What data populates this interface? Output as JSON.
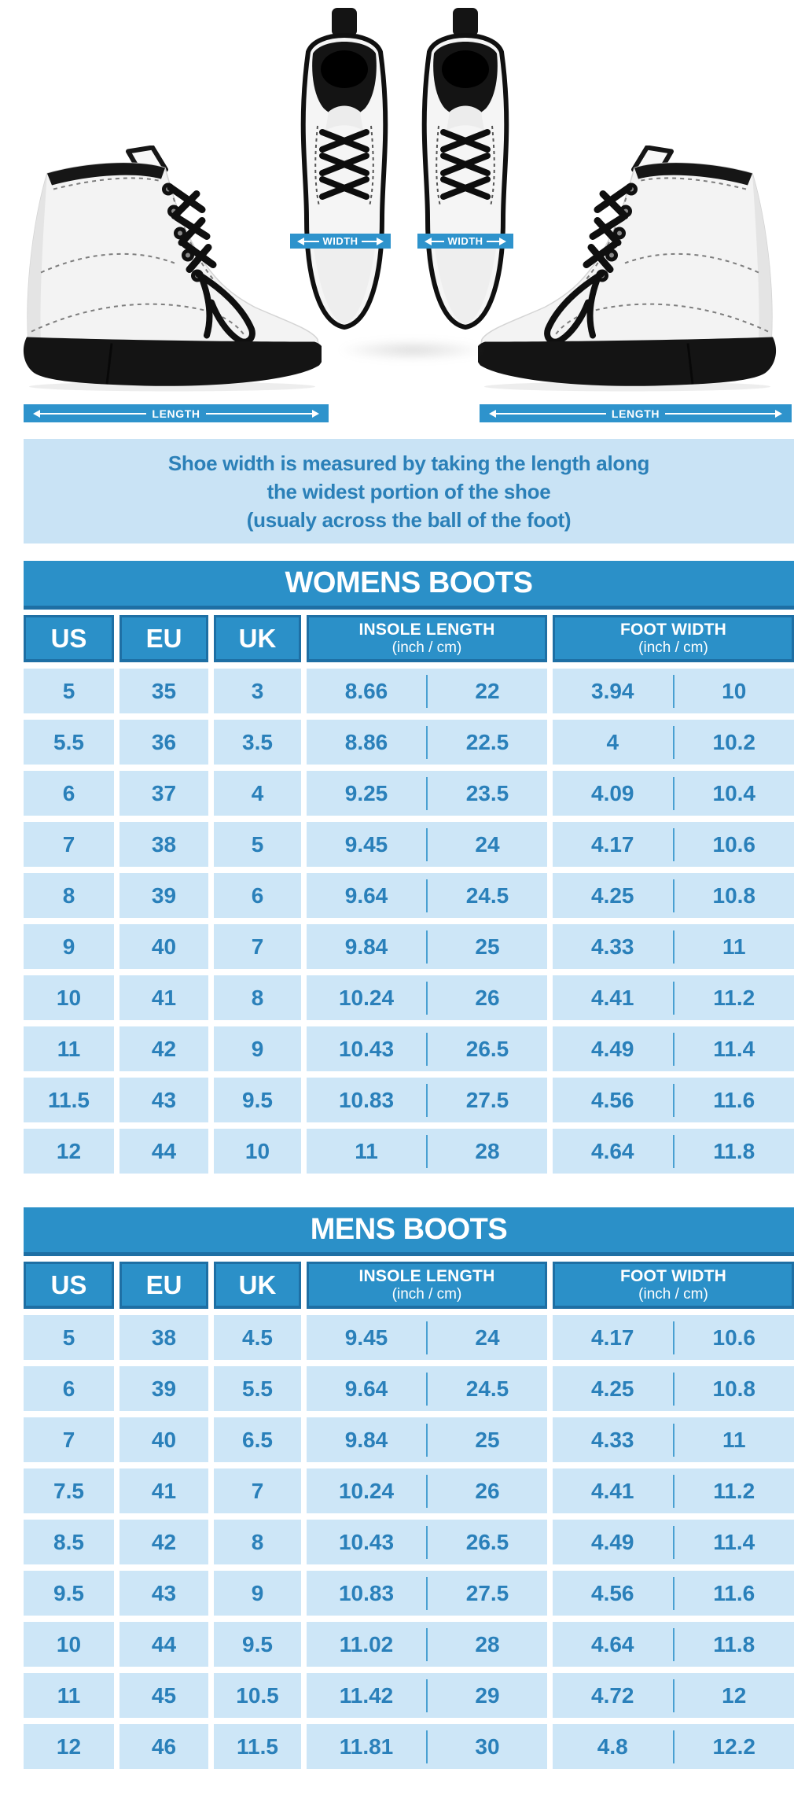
{
  "page": {
    "colors": {
      "accent_blue": "#2b90c8",
      "accent_blue_dark": "#1e6fa4",
      "cell_light_blue": "#cde6f7",
      "note_bg": "#c9e3f5",
      "data_text_blue": "#2a80ba",
      "note_text_blue": "#2b80b8",
      "band_white": "#ffffff"
    }
  },
  "hero": {
    "width_label": "WIDTH",
    "length_label": "LENGTH"
  },
  "note": {
    "line1": "Shoe width is measured by taking the length along",
    "line2": "the widest portion of the shoe",
    "line3": "(usualy across the ball of the foot)"
  },
  "tables": [
    {
      "title": "WOMENS BOOTS",
      "columns": [
        "US",
        "EU",
        "UK",
        "INSOLE LENGTH",
        "FOOT WIDTH"
      ],
      "units_label": "(inch / cm)",
      "rows": [
        {
          "us": "5",
          "eu": "35",
          "uk": "3",
          "in_in": "8.66",
          "in_cm": "22",
          "w_in": "3.94",
          "w_cm": "10"
        },
        {
          "us": "5.5",
          "eu": "36",
          "uk": "3.5",
          "in_in": "8.86",
          "in_cm": "22.5",
          "w_in": "4",
          "w_cm": "10.2"
        },
        {
          "us": "6",
          "eu": "37",
          "uk": "4",
          "in_in": "9.25",
          "in_cm": "23.5",
          "w_in": "4.09",
          "w_cm": "10.4"
        },
        {
          "us": "7",
          "eu": "38",
          "uk": "5",
          "in_in": "9.45",
          "in_cm": "24",
          "w_in": "4.17",
          "w_cm": "10.6"
        },
        {
          "us": "8",
          "eu": "39",
          "uk": "6",
          "in_in": "9.64",
          "in_cm": "24.5",
          "w_in": "4.25",
          "w_cm": "10.8"
        },
        {
          "us": "9",
          "eu": "40",
          "uk": "7",
          "in_in": "9.84",
          "in_cm": "25",
          "w_in": "4.33",
          "w_cm": "11"
        },
        {
          "us": "10",
          "eu": "41",
          "uk": "8",
          "in_in": "10.24",
          "in_cm": "26",
          "w_in": "4.41",
          "w_cm": "11.2"
        },
        {
          "us": "11",
          "eu": "42",
          "uk": "9",
          "in_in": "10.43",
          "in_cm": "26.5",
          "w_in": "4.49",
          "w_cm": "11.4"
        },
        {
          "us": "11.5",
          "eu": "43",
          "uk": "9.5",
          "in_in": "10.83",
          "in_cm": "27.5",
          "w_in": "4.56",
          "w_cm": "11.6"
        },
        {
          "us": "12",
          "eu": "44",
          "uk": "10",
          "in_in": "11",
          "in_cm": "28",
          "w_in": "4.64",
          "w_cm": "11.8"
        }
      ]
    },
    {
      "title": "MENS BOOTS",
      "columns": [
        "US",
        "EU",
        "UK",
        "INSOLE LENGTH",
        "FOOT WIDTH"
      ],
      "units_label": "(inch / cm)",
      "rows": [
        {
          "us": "5",
          "eu": "38",
          "uk": "4.5",
          "in_in": "9.45",
          "in_cm": "24",
          "w_in": "4.17",
          "w_cm": "10.6"
        },
        {
          "us": "6",
          "eu": "39",
          "uk": "5.5",
          "in_in": "9.64",
          "in_cm": "24.5",
          "w_in": "4.25",
          "w_cm": "10.8"
        },
        {
          "us": "7",
          "eu": "40",
          "uk": "6.5",
          "in_in": "9.84",
          "in_cm": "25",
          "w_in": "4.33",
          "w_cm": "11"
        },
        {
          "us": "7.5",
          "eu": "41",
          "uk": "7",
          "in_in": "10.24",
          "in_cm": "26",
          "w_in": "4.41",
          "w_cm": "11.2"
        },
        {
          "us": "8.5",
          "eu": "42",
          "uk": "8",
          "in_in": "10.43",
          "in_cm": "26.5",
          "w_in": "4.49",
          "w_cm": "11.4"
        },
        {
          "us": "9.5",
          "eu": "43",
          "uk": "9",
          "in_in": "10.83",
          "in_cm": "27.5",
          "w_in": "4.56",
          "w_cm": "11.6"
        },
        {
          "us": "10",
          "eu": "44",
          "uk": "9.5",
          "in_in": "11.02",
          "in_cm": "28",
          "w_in": "4.64",
          "w_cm": "11.8"
        },
        {
          "us": "11",
          "eu": "45",
          "uk": "10.5",
          "in_in": "11.42",
          "in_cm": "29",
          "w_in": "4.72",
          "w_cm": "12"
        },
        {
          "us": "12",
          "eu": "46",
          "uk": "11.5",
          "in_in": "11.81",
          "in_cm": "30",
          "w_in": "4.8",
          "w_cm": "12.2"
        }
      ]
    }
  ]
}
